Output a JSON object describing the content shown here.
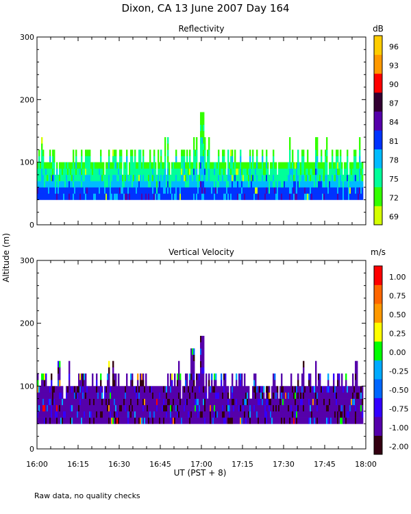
{
  "page_title": "Dixon, CA 13 June 2007  Day 164",
  "shared_ylabel": "Altitude (m)",
  "footnote": "Raw data, no quality checks",
  "colors": {
    "reflectivity": [
      "#d4ff00",
      "#33ff00",
      "#00ff99",
      "#00bbff",
      "#0033ff",
      "#5500aa",
      "#330033",
      "#ff0000",
      "#ff9900",
      "#ffcc00"
    ],
    "velocity": [
      "#330011",
      "#5500aa",
      "#3300ff",
      "#0066ff",
      "#00aaff",
      "#00ff00",
      "#ffff00",
      "#ff9900",
      "#ff6600",
      "#ff0000"
    ]
  },
  "chart_data": [
    {
      "type": "heatmap",
      "title": "Reflectivity",
      "ylabel": "Altitude (m)",
      "xlabel": "UT  (PST + 8)",
      "x_range_minutes": [
        0,
        120
      ],
      "ylim": [
        0,
        300
      ],
      "yticks": [
        0,
        100,
        200,
        300
      ],
      "ytick_labels": [
        "0",
        "100",
        "200",
        "300"
      ],
      "xtick_labels": [
        "16:00",
        "16:15",
        "16:30",
        "16:45",
        "17:00",
        "17:15",
        "17:30",
        "17:45",
        "18:00"
      ],
      "colorbar_unit": "dB",
      "colorbar_labels": [
        "69",
        "72",
        "75",
        "78",
        "81",
        "84",
        "87",
        "90",
        "93",
        "96"
      ],
      "data_bottom_m": 40,
      "typical_top_m": 100,
      "max_top_m": 180
    },
    {
      "type": "heatmap",
      "title": "Vertical Velocity",
      "ylabel": "Altitude (m)",
      "xlabel": "UT  (PST + 8)",
      "x_range_minutes": [
        0,
        120
      ],
      "ylim": [
        0,
        300
      ],
      "yticks": [
        0,
        100,
        200,
        300
      ],
      "ytick_labels": [
        "0",
        "100",
        "200",
        "300"
      ],
      "xtick_labels": [
        "16:00",
        "16:15",
        "16:30",
        "16:45",
        "17:00",
        "17:15",
        "17:30",
        "17:45",
        "18:00"
      ],
      "colorbar_unit": "m/s",
      "colorbar_labels": [
        "-2.00",
        "-1.00",
        "-0.75",
        "-0.50",
        "-0.25",
        "0.00",
        "0.25",
        "0.50",
        "0.75",
        "1.00"
      ],
      "data_bottom_m": 40,
      "typical_top_m": 100,
      "max_top_m": 180
    }
  ]
}
